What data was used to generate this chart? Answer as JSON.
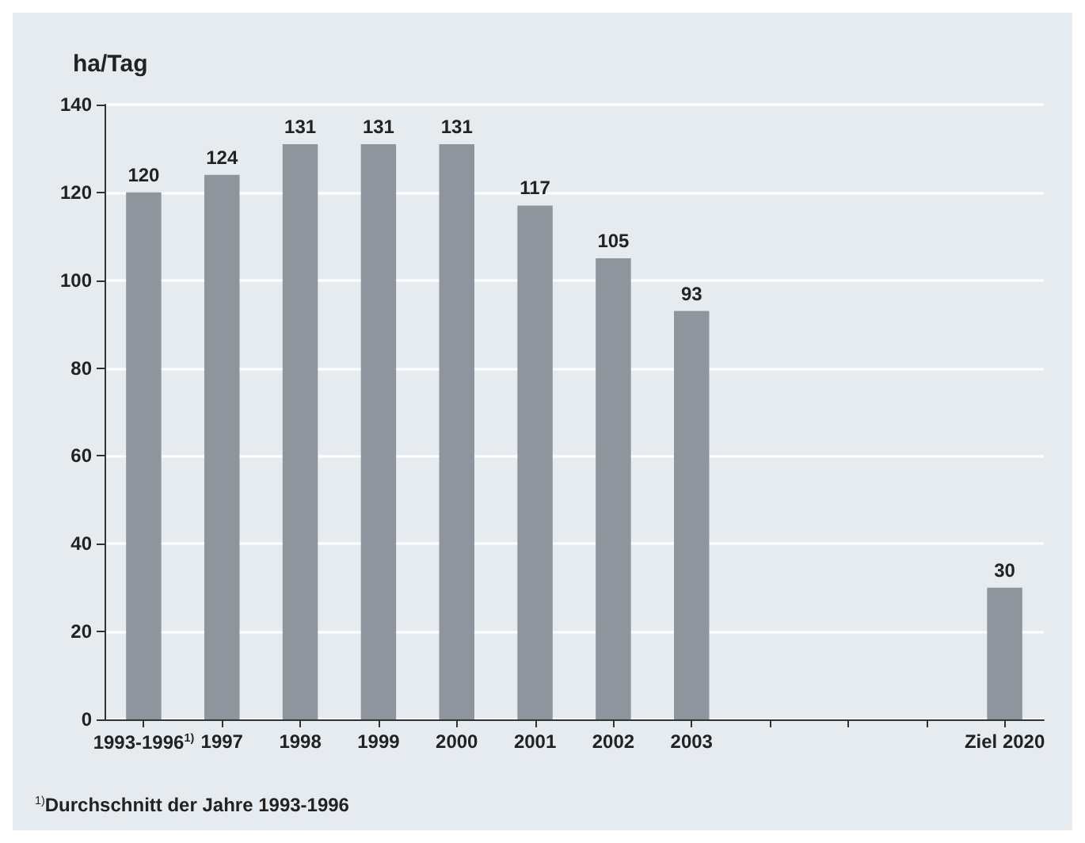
{
  "chart_data": {
    "type": "bar",
    "ylabel": "ha/Tag",
    "categories": [
      "1993-1996$^{1)}$",
      "1997",
      "1998",
      "1999",
      "2000",
      "2001",
      "2002",
      "2003",
      null,
      null,
      null,
      "Ziel 2020"
    ],
    "values": [
      120,
      124,
      131,
      131,
      131,
      117,
      105,
      93,
      null,
      null,
      null,
      30
    ],
    "color": "#8e959c",
    "ylim": [
      0,
      140
    ],
    "yticks": [
      0,
      20,
      40,
      60,
      80,
      100,
      120,
      140
    ],
    "grid": "y",
    "data_labels": true,
    "annotations": [
      "$^{1)}$Durchschnitt der Jahre 1993-1996"
    ]
  }
}
